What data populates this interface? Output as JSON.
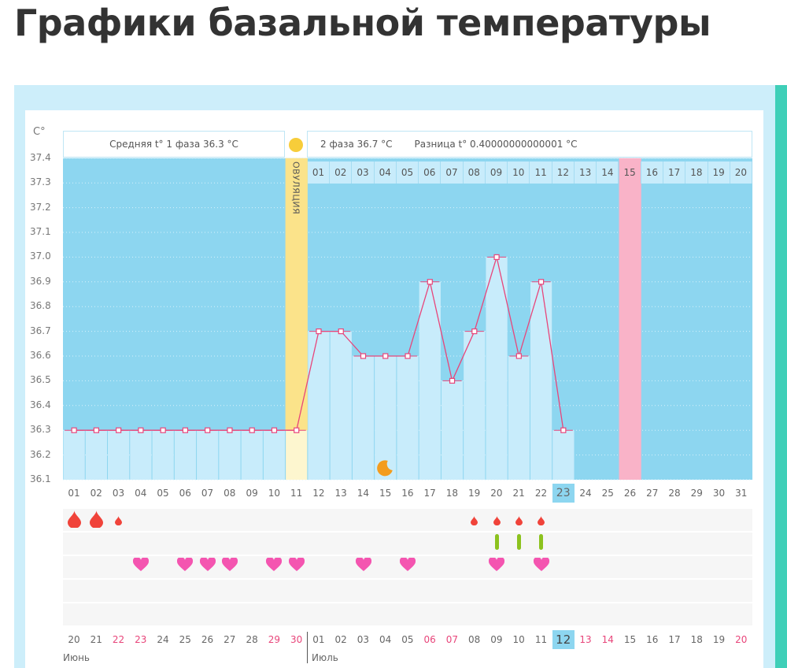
{
  "title": "Графики базальной температуры",
  "header": {
    "unit": "C°",
    "phase1": "Средняя t° 1 фаза 36.3 °C",
    "phase2": "2 фаза 36.7 °C",
    "diff": "Разница t° 0.40000000000001 °C",
    "ovulation": "ОВУЛЯЦИЯ",
    "phase2_days": [
      "01",
      "02",
      "03",
      "04",
      "05",
      "06",
      "07",
      "08",
      "09",
      "10",
      "11",
      "12",
      "13",
      "14",
      "15",
      "16",
      "17",
      "18",
      "19",
      "20"
    ],
    "phase2_highlight_day": "15"
  },
  "colors": {
    "background_sky": "#8dd6f0",
    "bar": "#c8ecfb",
    "line": "#e8457a",
    "ovulation": "#fbe38a",
    "pink_day": "#f9b3c8",
    "teal": "#3fcfb8",
    "weekend": "#e8457a",
    "drop": "#f0433a",
    "green": "#8cc21e",
    "heart": "#f455b0"
  },
  "chart_data": {
    "type": "line",
    "ylabel": "C°",
    "ylim": [
      36.1,
      37.4
    ],
    "yticks": [
      "37.4",
      "37.3",
      "37.2",
      "37.1",
      "37.0",
      "36.9",
      "36.8",
      "36.7",
      "36.6",
      "36.5",
      "36.4",
      "36.3",
      "36.2",
      "36.1"
    ],
    "cycle_days": [
      "01",
      "02",
      "03",
      "04",
      "05",
      "06",
      "07",
      "08",
      "09",
      "10",
      "11",
      "12",
      "13",
      "14",
      "15",
      "16",
      "17",
      "18",
      "19",
      "20",
      "21",
      "22",
      "23",
      "24",
      "25",
      "26",
      "27",
      "28",
      "29",
      "30",
      "31"
    ],
    "values": [
      36.3,
      36.3,
      36.3,
      36.3,
      36.3,
      36.3,
      36.3,
      36.3,
      36.3,
      36.3,
      36.3,
      36.7,
      36.7,
      36.6,
      36.6,
      36.6,
      36.9,
      36.5,
      36.7,
      37.0,
      36.6,
      36.9,
      36.3
    ],
    "ovulation_day": 11,
    "current_day": "23",
    "pink_day": 26,
    "moon_day": 15,
    "grid": true
  },
  "markers": {
    "drops_large": [
      1,
      2
    ],
    "drops_small": [
      3,
      19,
      20,
      21,
      22
    ],
    "green": [
      20,
      21,
      22
    ],
    "hearts": [
      4,
      6,
      7,
      8,
      10,
      11,
      14,
      16,
      20,
      22
    ]
  },
  "calendar": {
    "dates": [
      "20",
      "21",
      "22",
      "23",
      "24",
      "25",
      "26",
      "27",
      "28",
      "29",
      "30",
      "01",
      "02",
      "03",
      "04",
      "05",
      "06",
      "07",
      "08",
      "09",
      "10",
      "11",
      "12",
      "13",
      "14",
      "15",
      "16",
      "17",
      "18",
      "19",
      "20"
    ],
    "weekend_indexes": [
      3,
      4,
      10,
      11,
      17,
      18,
      24,
      25,
      31
    ],
    "today": "12",
    "month1": "Июнь",
    "month2": "Июль"
  }
}
